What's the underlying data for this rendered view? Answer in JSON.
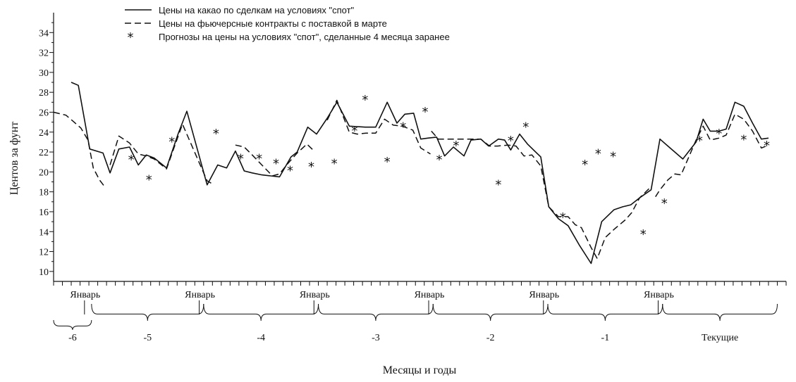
{
  "chart_data": {
    "type": "line",
    "title": "",
    "xlabel": "Месяцы и годы",
    "ylabel": "Центов за фунт",
    "x_unit": "месяцы",
    "xlim": [
      0,
      83
    ],
    "ylim": [
      9,
      36
    ],
    "y_ticks": [
      10,
      12,
      14,
      16,
      18,
      20,
      22,
      24,
      26,
      28,
      30,
      32,
      34
    ],
    "minor_y_ticks": true,
    "grid": false,
    "legend": {
      "placement": "top-center"
    },
    "january_label": "Январь",
    "january_months": [
      3.5,
      16.5,
      29.5,
      42.5,
      55.5,
      68.5
    ],
    "year_groups": [
      {
        "label": "-6",
        "from": 0,
        "to": 4.3
      },
      {
        "label": "-5",
        "from": 4.3,
        "to": 17
      },
      {
        "label": "-4",
        "from": 17,
        "to": 30
      },
      {
        "label": "-3",
        "from": 30,
        "to": 43
      },
      {
        "label": "-2",
        "from": 43,
        "to": 56
      },
      {
        "label": "-1",
        "from": 56,
        "to": 69
      },
      {
        "label": "Текущие",
        "from": 69,
        "to": 82
      }
    ],
    "series": [
      {
        "name": "Цены на какао по сделкам на условиях \"спот\"",
        "style": "solid",
        "x": [
          2,
          2.8,
          4.1,
          5.6,
          6.4,
          7.4,
          8.6,
          9.6,
          10.5,
          11.4,
          12.8,
          14.1,
          15.1,
          17.4,
          18.6,
          19.6,
          20.6,
          21.6,
          22.5,
          23.6,
          24.6,
          25.6,
          26.9,
          27.6,
          28.8,
          29.8,
          31,
          32.1,
          33.5,
          35.3,
          36.5,
          37.8,
          38.9,
          39.8,
          40.8,
          41.6,
          42.4,
          43.4,
          44.3,
          45.3,
          46.5,
          47.3,
          48.4,
          49.3,
          50.4,
          51.1,
          51.8,
          52.8,
          53.7,
          55.2,
          56.1,
          57.2,
          58.3,
          59.6,
          60.9,
          62.1,
          63.5,
          64.5,
          65.4,
          66.4,
          67.7,
          68.7,
          69.6,
          71.3,
          72.8,
          73.6,
          74.4,
          75.4,
          76.2,
          77.2,
          78.2,
          79.2,
          80.2,
          81
        ],
        "y": [
          29,
          28.7,
          22.3,
          21.9,
          19.9,
          22.3,
          22.5,
          20.7,
          21.7,
          21.4,
          20.4,
          23.8,
          26.1,
          18.7,
          20.7,
          20.4,
          22.1,
          20.1,
          19.9,
          19.7,
          19.6,
          19.5,
          21.5,
          22,
          24.5,
          23.8,
          25.4,
          27,
          24.6,
          24.5,
          24.5,
          27,
          24.9,
          25.8,
          25.9,
          23.3,
          23.4,
          23.5,
          21.6,
          22.5,
          21.6,
          23.2,
          23.3,
          22.6,
          23.3,
          23.2,
          22.2,
          23.8,
          22.8,
          21.5,
          16.5,
          15.3,
          14.6,
          12.6,
          10.8,
          15,
          16.2,
          16.5,
          16.7,
          17.4,
          18.2,
          23.3,
          22.6,
          21.3,
          23,
          25.3,
          24.1,
          24.1,
          24.3,
          27,
          26.6,
          24.9,
          23.3,
          23.4
        ]
      },
      {
        "name": "Цены на фьючерсные контракты с поставкой в марте",
        "style": "dashed",
        "segments": [
          {
            "x": [
              0,
              1.4,
              2.2,
              3.1,
              3.9,
              4.5,
              5.2,
              5.8
            ],
            "y": [
              26,
              25.7,
              25.1,
              24.4,
              23.2,
              20.4,
              19.2,
              18.5
            ]
          },
          {
            "x": [
              6.4,
              7.4,
              8.6,
              9.6,
              10.5,
              11.4,
              12.8,
              13.6,
              14.6,
              17.4,
              18.2
            ],
            "y": [
              20.7,
              23.6,
              22.9,
              21.8,
              21.6,
              21.3,
              20.3,
              22.3,
              24.8,
              19.1,
              18.7
            ]
          },
          {
            "x": [
              20.6,
              21.6,
              22.4,
              23.6,
              24.8,
              25.6,
              26.5,
              27.6,
              28.7,
              29.4
            ],
            "y": [
              22.7,
              22.5,
              21.8,
              20.7,
              19.6,
              19.8,
              20.8,
              21.9,
              22.8,
              22.2
            ]
          },
          {
            "x": [
              31,
              32.1,
              33.5,
              34.4,
              35.4,
              36.5,
              37.5,
              38.5,
              39.5,
              40.7,
              41.6,
              42.7
            ],
            "y": [
              25.2,
              27.2,
              24,
              23.8,
              23.9,
              23.9,
              25.3,
              24.7,
              24.6,
              24.2,
              22.4,
              21.8
            ]
          },
          {
            "x": [
              42.8,
              43.6,
              45.4,
              47.4,
              48.4,
              49.4,
              50.3,
              51.5,
              52.4,
              53.3,
              54.2,
              55.2,
              56.1,
              57.2,
              58.3,
              59.1,
              59.8,
              60.9,
              61.6,
              62.5,
              63.6,
              64.8,
              65.5,
              66.4,
              67.8
            ],
            "y": [
              24.1,
              23.3,
              23.3,
              23.3,
              23.3,
              22.6,
              22.6,
              22.7,
              22.6,
              21.6,
              21.7,
              20.6,
              16.5,
              15.5,
              15.5,
              14.7,
              14.4,
              12.4,
              11.3,
              13.4,
              14.3,
              15.2,
              15.9,
              17.4,
              18.6
            ]
          },
          {
            "x": [
              68.2,
              68.7,
              69.6,
              70.4,
              71.1,
              72.8,
              73.6,
              74.4,
              75.4,
              76.2,
              77.2,
              78.2,
              79.2,
              80.2,
              81
            ],
            "y": [
              17.5,
              18.2,
              19.2,
              19.8,
              19.7,
              23.2,
              24.6,
              23.2,
              23.4,
              23.7,
              25.8,
              25.3,
              24.1,
              22.4,
              22.7
            ]
          }
        ]
      },
      {
        "name": "Прогнозы на цены на условиях \"спот\", сделанные 4 месяца заранее",
        "style": "markers",
        "marker": "*",
        "x": [
          8.8,
          10.8,
          13.4,
          18.4,
          21.2,
          23.3,
          25.2,
          26.8,
          29.2,
          31.8,
          34.1,
          35.3,
          37.8,
          39.6,
          42.1,
          43.7,
          45.6,
          50.4,
          51.8,
          53.5,
          57.7,
          60.2,
          61.7,
          63.4,
          66.8,
          69.2,
          73.2,
          75.4,
          78.2,
          80.8
        ],
        "y": [
          21.3,
          19.3,
          23.1,
          23.9,
          21.4,
          21.4,
          20.9,
          20.2,
          20.6,
          20.9,
          24.2,
          27.3,
          21.1,
          24.6,
          26.1,
          21.3,
          22.7,
          18.8,
          23.2,
          24.6,
          15.5,
          20.8,
          21.9,
          21.6,
          13.8,
          16.9,
          23.2,
          23.9,
          23.3,
          22.7
        ]
      }
    ]
  }
}
